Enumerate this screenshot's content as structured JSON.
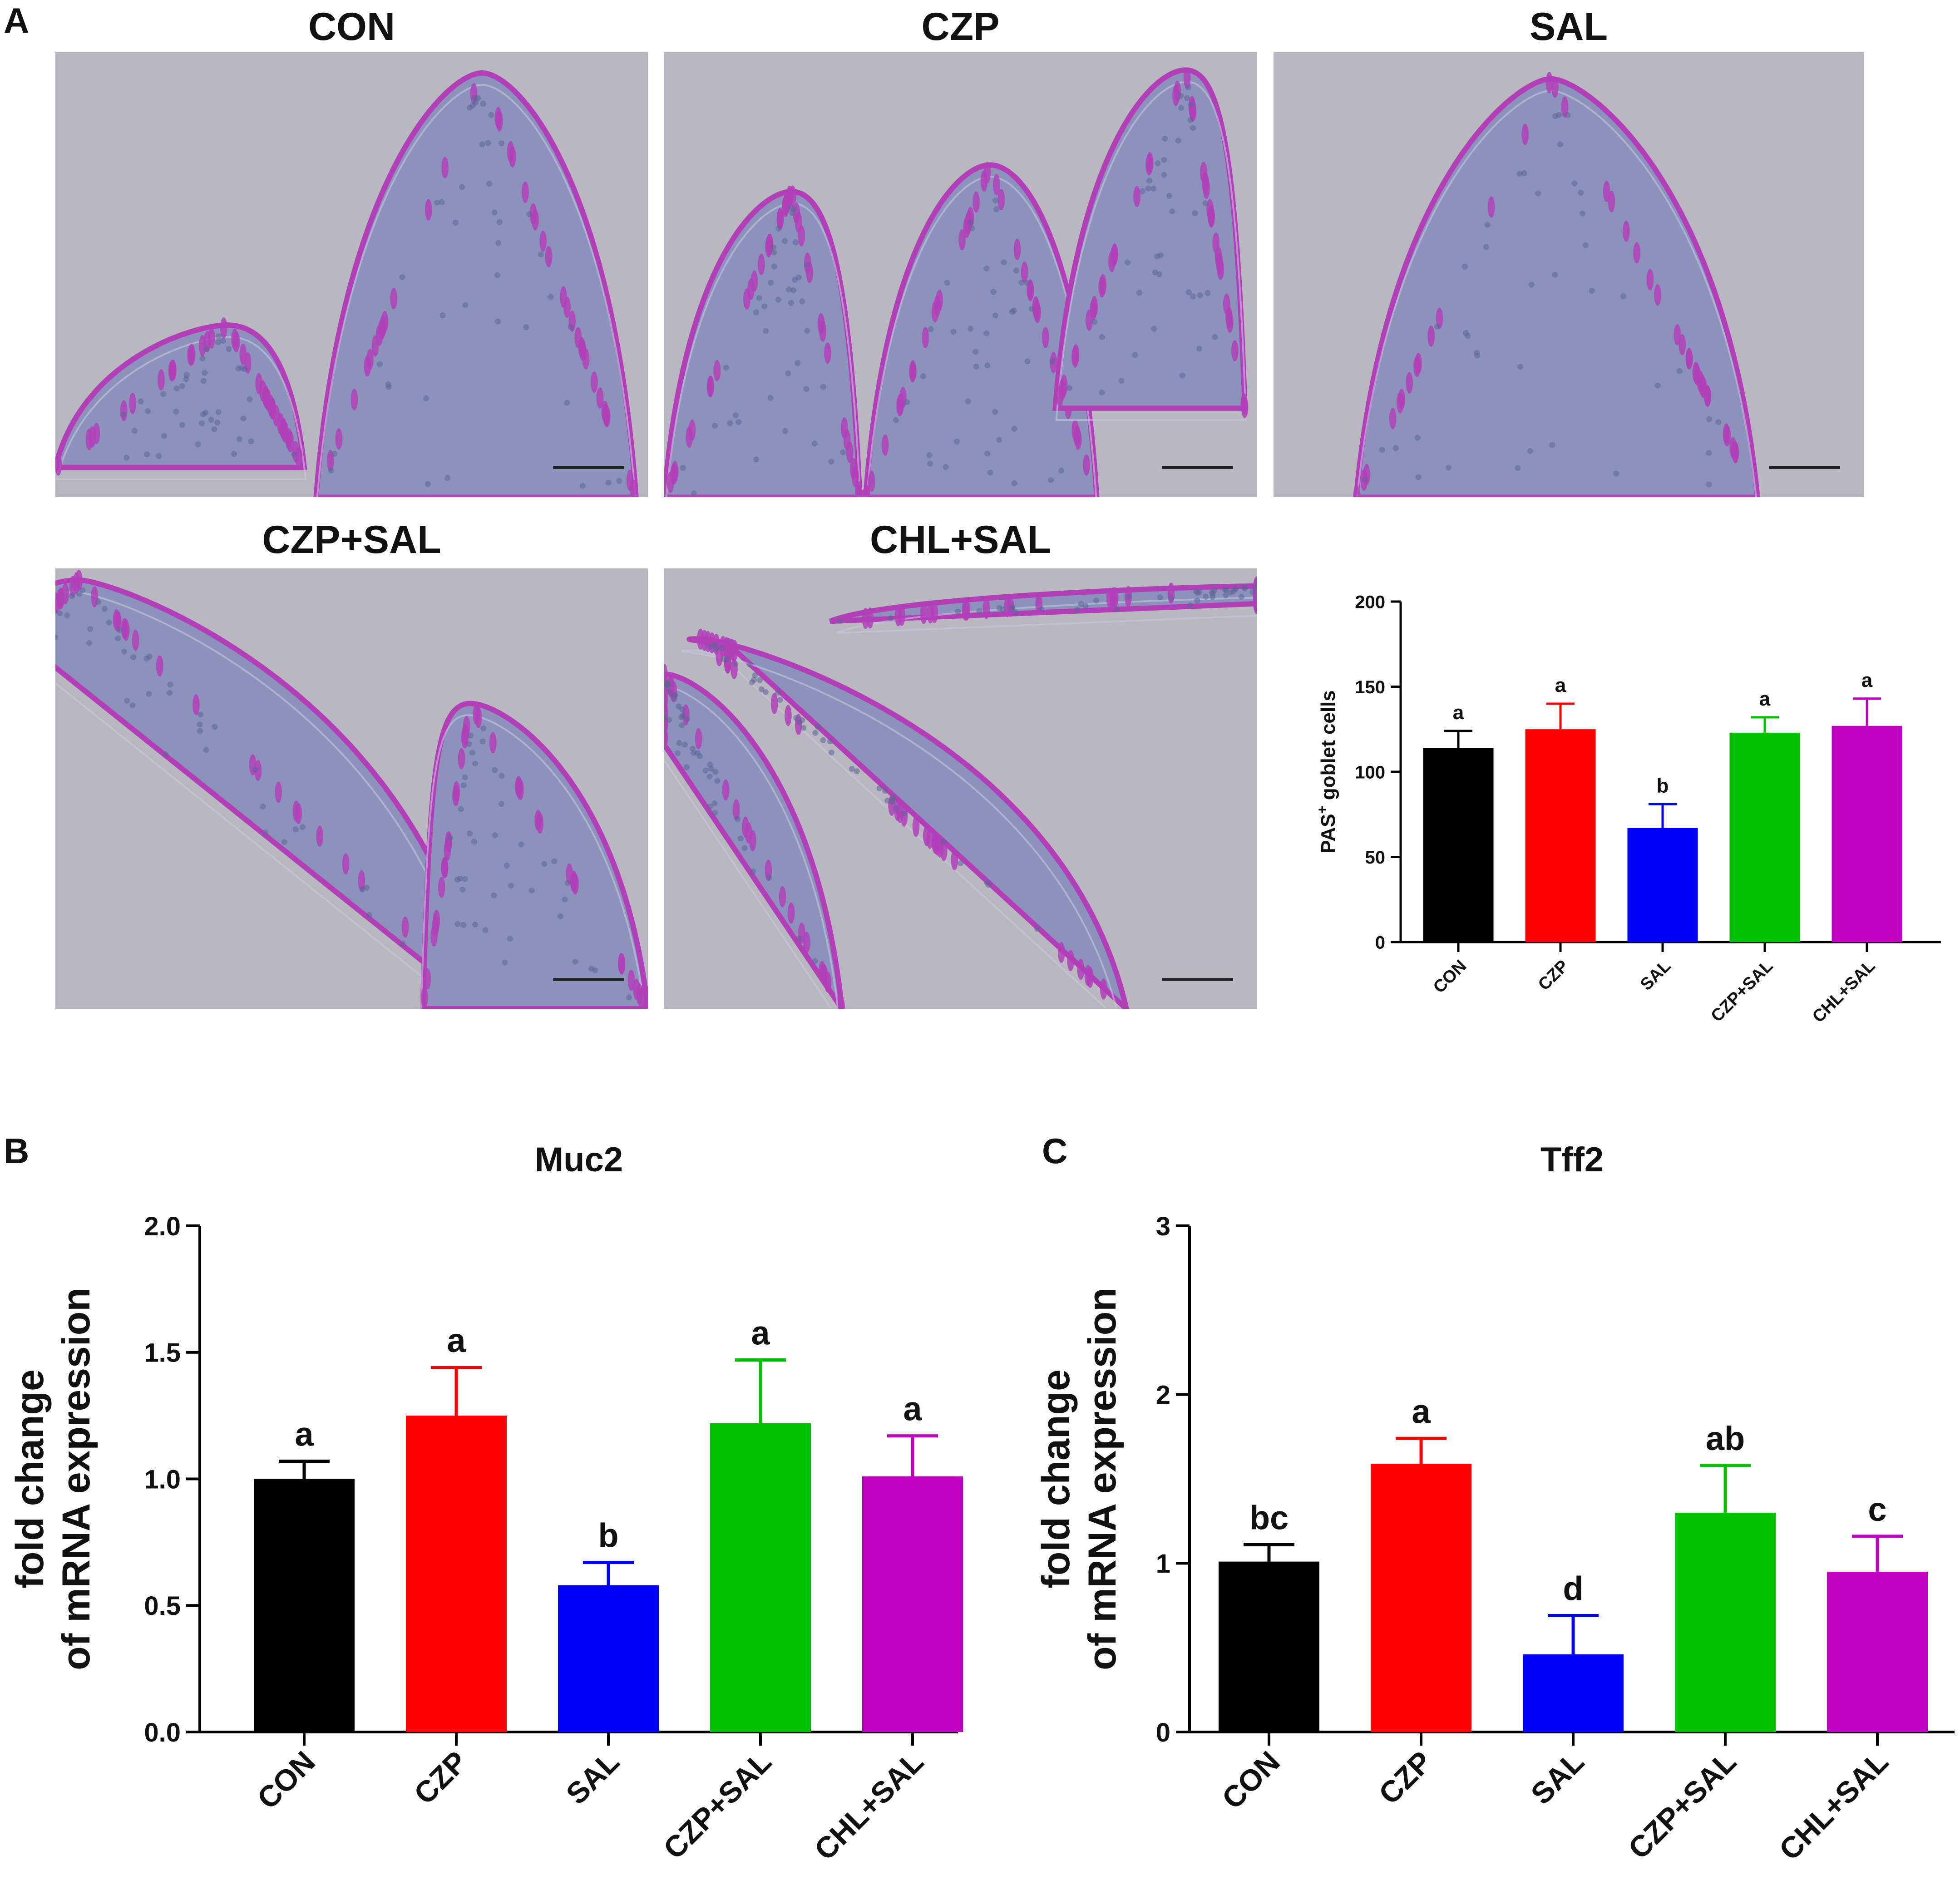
{
  "panel_labels": [
    "A",
    "B",
    "C"
  ],
  "images": [
    {
      "id": "con",
      "title": "CON"
    },
    {
      "id": "czp",
      "title": "CZP"
    },
    {
      "id": "sal",
      "title": "SAL"
    },
    {
      "id": "czpsal",
      "title": "CZP+SAL"
    },
    {
      "id": "chlsal",
      "title": "CHL+SAL"
    }
  ],
  "colors": {
    "CON": "#000000",
    "CZP": "#ff0000",
    "SAL": "#0000ff",
    "CZP+SAL": "#00c000",
    "CHL+SAL": "#c000c0",
    "tissue_background": "#b9b7c0",
    "tissue_blue": "#8d92bd",
    "goblet_magenta": "#b23fb8"
  },
  "chart_data": [
    {
      "id": "pas",
      "type": "bar",
      "title": "",
      "ylabel_main": "PAS",
      "ylabel_sup": "+",
      "ylabel_rest": " goblet cells",
      "categories": [
        "CON",
        "CZP",
        "SAL",
        "CZP+SAL",
        "CHL+SAL"
      ],
      "values": [
        114,
        125,
        67,
        123,
        127
      ],
      "errors": [
        10,
        15,
        14,
        9,
        16
      ],
      "letters": [
        "a",
        "a",
        "b",
        "a",
        "a"
      ],
      "ylim": [
        0,
        200
      ],
      "yticks": [
        0,
        50,
        100,
        150,
        200
      ]
    },
    {
      "id": "muc2",
      "type": "bar",
      "title": "Muc2",
      "ylabel": [
        "fold change",
        "of mRNA expression"
      ],
      "categories": [
        "CON",
        "CZP",
        "SAL",
        "CZP+SAL",
        "CHL+SAL"
      ],
      "values": [
        1.0,
        1.25,
        0.58,
        1.22,
        1.01
      ],
      "errors": [
        0.07,
        0.19,
        0.09,
        0.25,
        0.16
      ],
      "letters": [
        "a",
        "a",
        "b",
        "a",
        "a"
      ],
      "ylim": [
        0,
        2
      ],
      "yticks": [
        "0.0",
        "0.5",
        "1.0",
        "1.5",
        "2.0"
      ]
    },
    {
      "id": "tff2",
      "type": "bar",
      "title": "Tff2",
      "ylabel": [
        "fold change",
        "of mRNA expression"
      ],
      "categories": [
        "CON",
        "CZP",
        "SAL",
        "CZP+SAL",
        "CHL+SAL"
      ],
      "values": [
        1.01,
        1.59,
        0.46,
        1.3,
        0.95
      ],
      "errors": [
        0.1,
        0.15,
        0.23,
        0.28,
        0.21
      ],
      "letters": [
        "bc",
        "a",
        "d",
        "ab",
        "c"
      ],
      "ylim": [
        0,
        3
      ],
      "yticks": [
        "0",
        "1",
        "2",
        "3"
      ]
    }
  ]
}
